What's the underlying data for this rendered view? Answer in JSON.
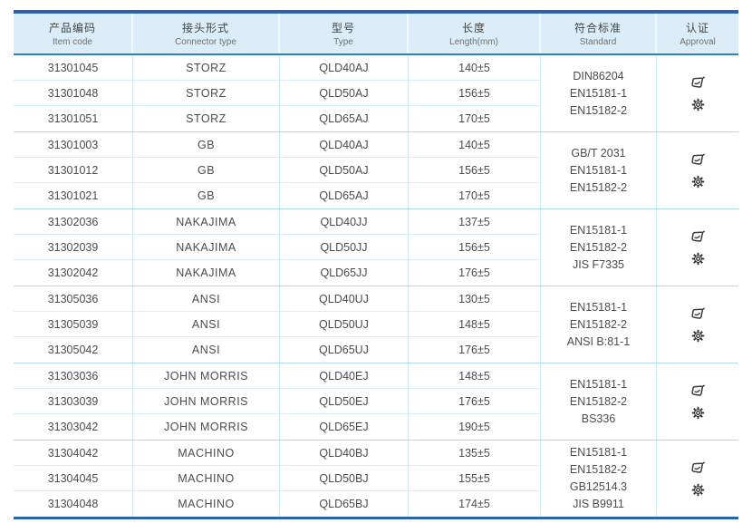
{
  "columns": [
    {
      "zh": "产品编码",
      "en": "Item code"
    },
    {
      "zh": "接头形式",
      "en": "Connector type"
    },
    {
      "zh": "型号",
      "en": "Type"
    },
    {
      "zh": "长度",
      "en": "Length(mm)"
    },
    {
      "zh": "符合标准",
      "en": "Standard"
    },
    {
      "zh": "认证",
      "en": "Approval"
    }
  ],
  "groups": [
    {
      "rows": [
        {
          "item_code": "31301045",
          "connector": "STORZ",
          "type": "QLD40AJ",
          "length": "140±5"
        },
        {
          "item_code": "31301048",
          "connector": "STORZ",
          "type": "QLD50AJ",
          "length": "156±5"
        },
        {
          "item_code": "31301051",
          "connector": "STORZ",
          "type": "QLD65AJ",
          "length": "170±5"
        }
      ],
      "standards": [
        "DIN86204",
        "EN15181-1",
        "EN15182-2"
      ],
      "approval_icons": [
        "certificate-icon",
        "gear-icon"
      ]
    },
    {
      "rows": [
        {
          "item_code": "31301003",
          "connector": "GB",
          "type": "QLD40AJ",
          "length": "140±5"
        },
        {
          "item_code": "31301012",
          "connector": "GB",
          "type": "QLD50AJ",
          "length": "156±5"
        },
        {
          "item_code": "31301021",
          "connector": "GB",
          "type": "QLD65AJ",
          "length": "170±5"
        }
      ],
      "standards": [
        "GB/T 2031",
        "EN15181-1",
        "EN15182-2"
      ],
      "approval_icons": [
        "certificate-icon",
        "gear-icon"
      ]
    },
    {
      "rows": [
        {
          "item_code": "31302036",
          "connector": "NAKAJIMA",
          "type": "QLD40JJ",
          "length": "137±5"
        },
        {
          "item_code": "31302039",
          "connector": "NAKAJIMA",
          "type": "QLD50JJ",
          "length": "156±5"
        },
        {
          "item_code": "31302042",
          "connector": "NAKAJIMA",
          "type": "QLD65JJ",
          "length": "176±5"
        }
      ],
      "standards": [
        "EN15181-1",
        "EN15182-2",
        "JIS F7335"
      ],
      "approval_icons": [
        "certificate-icon",
        "gear-icon"
      ]
    },
    {
      "rows": [
        {
          "item_code": "31305036",
          "connector": "ANSI",
          "type": "QLD40UJ",
          "length": "130±5"
        },
        {
          "item_code": "31305039",
          "connector": "ANSI",
          "type": "QLD50UJ",
          "length": "148±5"
        },
        {
          "item_code": "31305042",
          "connector": "ANSI",
          "type": "QLD65UJ",
          "length": "176±5"
        }
      ],
      "standards": [
        "EN15181-1",
        "EN15182-2",
        "ANSI B:81-1"
      ],
      "approval_icons": [
        "certificate-icon",
        "gear-icon"
      ]
    },
    {
      "rows": [
        {
          "item_code": "31303036",
          "connector": "JOHN MORRIS",
          "type": "QLD40EJ",
          "length": "148±5"
        },
        {
          "item_code": "31303039",
          "connector": "JOHN MORRIS",
          "type": "QLD50EJ",
          "length": "176±5"
        },
        {
          "item_code": "31303042",
          "connector": "JOHN MORRIS",
          "type": "QLD65EJ",
          "length": "190±5"
        }
      ],
      "standards": [
        "EN15181-1",
        "EN15182-2",
        "BS336"
      ],
      "approval_icons": [
        "certificate-icon",
        "gear-icon"
      ]
    },
    {
      "rows": [
        {
          "item_code": "31304042",
          "connector": "MACHINO",
          "type": "QLD40BJ",
          "length": "135±5"
        },
        {
          "item_code": "31304045",
          "connector": "MACHINO",
          "type": "QLD50BJ",
          "length": "155±5"
        },
        {
          "item_code": "31304048",
          "connector": "MACHINO",
          "type": "QLD65BJ",
          "length": "174±5"
        }
      ],
      "standards": [
        "EN15181-1",
        "EN15182-2",
        "GB12514.3",
        "JIS B9911"
      ],
      "approval_icons": [
        "certificate-icon",
        "gear-icon"
      ]
    }
  ],
  "colors": {
    "accent": "#2b62ad",
    "header_bg": "#daedf8",
    "header_divider": "#3a7abf",
    "row_line": "#d7edf8",
    "group_line": "#aadcf1",
    "text": "#4c4c4c"
  }
}
